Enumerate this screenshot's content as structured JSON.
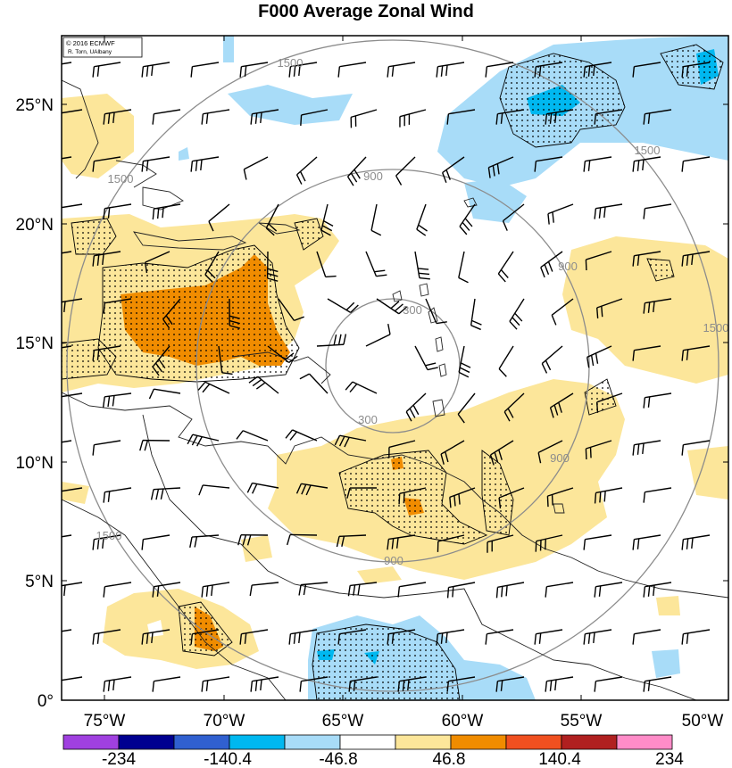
{
  "title": "F000 Average Zonal Wind",
  "credit": [
    "© 2016 ECMWF",
    "R. Torn, UAlbany"
  ],
  "lat_labels": [
    "25°N",
    "20°N",
    "15°N",
    "10°N",
    "5°N",
    "0°"
  ],
  "lon_labels": [
    "75°W",
    "70°W",
    "65°W",
    "60°W",
    "55°W",
    "50°W"
  ],
  "range_ring_labels": [
    "300",
    "300",
    "900",
    "900",
    "900",
    "900",
    "1500",
    "1500",
    "1500",
    "1500",
    "1500"
  ],
  "colorbar": {
    "labels": [
      "-234",
      "-140.4",
      "-46.8",
      "46.8",
      "140.4",
      "234"
    ],
    "colors": [
      "#a040e0",
      "#000090",
      "#3060d0",
      "#00b8f0",
      "#a8dcf8",
      "#ffffff",
      "#fce69a",
      "#f08c00",
      "#f05020",
      "#b02020",
      "#ff8cc8"
    ]
  },
  "shading": {
    "positive_weak": "#fce69a",
    "positive_strong": "#f08c00",
    "negative_weak": "#a8dcf8",
    "negative_strong": "#00b8f0"
  }
}
